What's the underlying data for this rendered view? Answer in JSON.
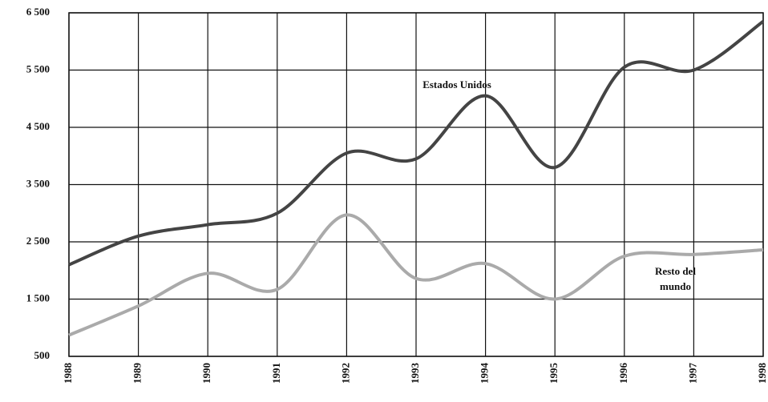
{
  "chart_data": {
    "type": "line",
    "x": [
      1988,
      1989,
      1990,
      1991,
      1992,
      1993,
      1994,
      1995,
      1996,
      1997,
      1998
    ],
    "series": [
      {
        "name": "Estados Unidos",
        "color": "#444444",
        "values": [
          2100,
          2600,
          2800,
          3000,
          4050,
          3950,
          5050,
          3800,
          5550,
          5500,
          6350
        ]
      },
      {
        "name": "Resto del mundo",
        "color": "#aaaaaa",
        "values": [
          870,
          1380,
          1950,
          1670,
          2970,
          1860,
          2120,
          1500,
          2250,
          2280,
          2360
        ]
      }
    ],
    "xlim": [
      1988,
      1998
    ],
    "xticks": [
      1988,
      1989,
      1990,
      1991,
      1992,
      1993,
      1994,
      1995,
      1996,
      1997,
      1998
    ],
    "ylim": [
      500,
      6500
    ],
    "yticks": [
      500,
      {
        "value": 1500,
        "label": "1 500"
      },
      {
        "value": 2500,
        "label": "2 500"
      },
      {
        "value": 3500,
        "label": "3 500"
      },
      {
        "value": 4500,
        "label": "4 500"
      },
      {
        "value": 5500,
        "label": "5 500"
      },
      {
        "value": 6500,
        "label": "6 500"
      }
    ],
    "grid": true
  }
}
